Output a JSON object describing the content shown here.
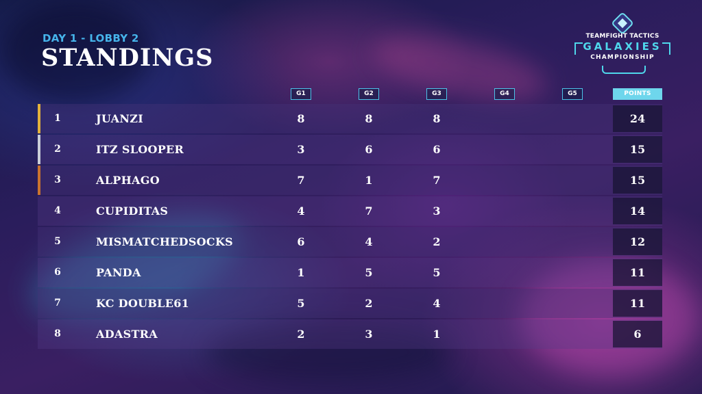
{
  "header": {
    "subtitle": "DAY 1 - LOBBY 2",
    "title": "STANDINGS"
  },
  "logo": {
    "line1": "TEAMFIGHT TACTICS",
    "line2": "GALAXIES",
    "line3": "CHAMPIONSHIP"
  },
  "columns": {
    "games": [
      "G1",
      "G2",
      "G3",
      "G4",
      "G5"
    ],
    "points": "POINTS"
  },
  "colors": {
    "accent_blue": "#46b4ea",
    "gold": "#e3b23c",
    "silver": "#c9ced8",
    "bronze": "#c9742f"
  },
  "standings": [
    {
      "rank": "1",
      "name": "JUANZI",
      "g": [
        "8",
        "8",
        "8",
        "",
        ""
      ],
      "points": "24"
    },
    {
      "rank": "2",
      "name": "ITZ SLOOPER",
      "g": [
        "3",
        "6",
        "6",
        "",
        ""
      ],
      "points": "15"
    },
    {
      "rank": "3",
      "name": "ALPHAGO",
      "g": [
        "7",
        "1",
        "7",
        "",
        ""
      ],
      "points": "15"
    },
    {
      "rank": "4",
      "name": "CUPIDITAS",
      "g": [
        "4",
        "7",
        "3",
        "",
        ""
      ],
      "points": "14"
    },
    {
      "rank": "5",
      "name": "MISMATCHEDSOCKS",
      "g": [
        "6",
        "4",
        "2",
        "",
        ""
      ],
      "points": "12"
    },
    {
      "rank": "6",
      "name": "PANDA",
      "g": [
        "1",
        "5",
        "5",
        "",
        ""
      ],
      "points": "11"
    },
    {
      "rank": "7",
      "name": "KC DOUBLE61",
      "g": [
        "5",
        "2",
        "4",
        "",
        ""
      ],
      "points": "11"
    },
    {
      "rank": "8",
      "name": "ADASTRA",
      "g": [
        "2",
        "3",
        "1",
        "",
        ""
      ],
      "points": "6"
    }
  ]
}
